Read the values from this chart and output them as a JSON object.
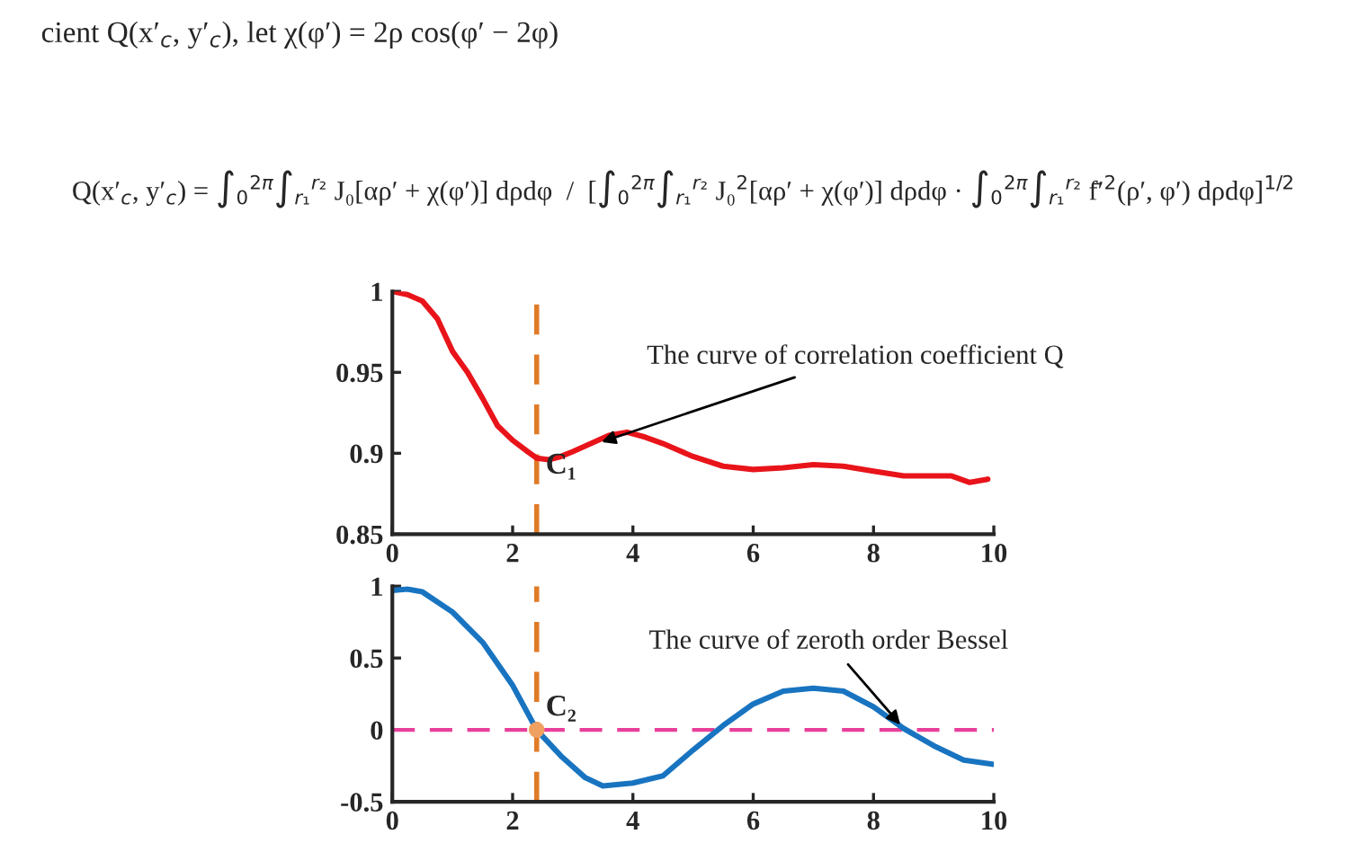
{
  "chart_data": [
    {
      "type": "line",
      "annotations": [
        "cient Q(x′$_{c}$, y′$_{c}$), let χ(φ′) = 2ρ cos(φ′ − 2φ)",
        "Q(x′$_{c}$, y′$_{c}$) = ∫$_{0}$$^{2π}$∫$_{r₁}$$^{r₂}$ J₀[αρ′ + χ(φ′)] dρdφ  /  [∫$_{0}$$^{2π}$∫$_{r₁}$$^{r₂}$ J₀$^{2}$[αρ′ + χ(φ′)] dρdφ · ∫$_{0}$$^{2π}$∫$_{r₁}$$^{r₂}$ f̄′$^{2}$(ρ′, φ′) dρdφ]$^{1/2}$",
        {
          "text": "The curve of correlation coefficient Q",
          "x": 3.4,
          "y": 0.906
        }
      ],
      "xlim": [
        0,
        10
      ],
      "xticks": [
        0,
        2,
        4,
        6,
        8,
        10
      ],
      "ylim": [
        0.85,
        1.0
      ],
      "yticks": [
        0.85,
        0.9,
        0.95,
        1
      ],
      "grid": false,
      "ref_lines": [
        {
          "axis": "x",
          "value": 2.4,
          "label": "C₁",
          "color": "#e07b28",
          "line_style": "dashed"
        }
      ],
      "series": [
        {
          "color": "#e8141a",
          "x": [
            0,
            0.25,
            0.5,
            0.75,
            1.0,
            1.25,
            1.5,
            1.75,
            2.0,
            2.25,
            2.4,
            2.6,
            2.8,
            3.0,
            3.3,
            3.6,
            3.9,
            4.2,
            4.5,
            5.0,
            5.5,
            6.0,
            6.5,
            7.0,
            7.5,
            8.0,
            8.5,
            9.0,
            9.3,
            9.6,
            9.9
          ],
          "values": [
            1.0,
            0.998,
            0.994,
            0.983,
            0.963,
            0.95,
            0.934,
            0.917,
            0.908,
            0.901,
            0.897,
            0.896,
            0.898,
            0.901,
            0.906,
            0.911,
            0.913,
            0.91,
            0.906,
            0.898,
            0.892,
            0.89,
            0.891,
            0.893,
            0.892,
            0.889,
            0.886,
            0.886,
            0.886,
            0.882,
            0.884
          ]
        }
      ]
    },
    {
      "type": "line",
      "annotations": [
        {
          "text": "The curve of zeroth order Bessel",
          "x": 8.5,
          "y": 0.01
        }
      ],
      "xlim": [
        0,
        10
      ],
      "xticks": [
        0,
        2,
        4,
        6,
        8,
        10
      ],
      "ylim": [
        -0.5,
        1
      ],
      "yticks": [
        -0.5,
        0,
        0.5,
        1
      ],
      "grid": false,
      "ref_lines": [
        {
          "axis": "x",
          "value": 2.4,
          "label": "C₂",
          "color": "#e07b28",
          "line_style": "dashed"
        },
        {
          "axis": "y",
          "value": 0,
          "color": "#e8409a",
          "line_style": "dashed"
        }
      ],
      "series": [
        {
          "color": "#1874c0",
          "x": [
            0,
            0.25,
            0.5,
            1.0,
            1.5,
            2.0,
            2.4,
            2.8,
            3.2,
            3.5,
            4.0,
            4.5,
            5.0,
            5.5,
            6.0,
            6.5,
            7.0,
            7.5,
            8.0,
            8.5,
            9.0,
            9.5,
            10
          ],
          "values": [
            0.97,
            0.98,
            0.96,
            0.82,
            0.61,
            0.31,
            0.0,
            -0.18,
            -0.33,
            -0.39,
            -0.37,
            -0.32,
            -0.14,
            0.03,
            0.18,
            0.27,
            0.29,
            0.27,
            0.16,
            0.01,
            -0.11,
            -0.21,
            -0.24
          ]
        },
        {
          "type": "scatter",
          "color": "#f0a060",
          "marker": "circle",
          "x": [
            2.4
          ],
          "values": [
            0
          ]
        }
      ]
    }
  ]
}
